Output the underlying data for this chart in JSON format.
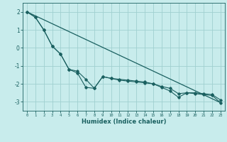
{
  "xlabel": "Humidex (Indice chaleur)",
  "bg_color": "#c8ecec",
  "grid_color": "#a0d0d0",
  "line_color": "#1a6060",
  "spine_color": "#1a6060",
  "xlim": [
    -0.5,
    23.5
  ],
  "ylim": [
    -3.5,
    2.5
  ],
  "yticks": [
    -3,
    -2,
    -1,
    0,
    1,
    2
  ],
  "xticks": [
    0,
    1,
    2,
    3,
    4,
    5,
    6,
    7,
    8,
    9,
    10,
    11,
    12,
    13,
    14,
    15,
    16,
    17,
    18,
    19,
    20,
    21,
    22,
    23
  ],
  "series1_x": [
    0,
    1,
    2,
    3,
    4,
    5,
    6,
    7,
    8,
    9,
    10,
    11,
    12,
    13,
    14,
    15,
    16,
    17,
    18,
    19,
    20,
    21,
    22,
    23
  ],
  "series1_y": [
    2.0,
    1.7,
    1.0,
    0.1,
    -0.35,
    -1.2,
    -1.3,
    -1.75,
    -2.25,
    -1.6,
    -1.7,
    -1.8,
    -1.85,
    -1.9,
    -1.95,
    -2.0,
    -2.15,
    -2.25,
    -2.55,
    -2.5,
    -2.5,
    -2.55,
    -2.6,
    -2.9
  ],
  "series2_x": [
    0,
    1,
    2,
    3,
    4,
    5,
    6,
    7,
    8,
    9,
    10,
    11,
    12,
    13,
    14,
    15,
    16,
    17,
    18,
    19,
    20,
    21,
    22,
    23
  ],
  "series2_y": [
    2.0,
    1.7,
    1.0,
    0.1,
    -0.35,
    -1.2,
    -1.4,
    -2.2,
    -2.25,
    -1.6,
    -1.7,
    -1.75,
    -1.8,
    -1.85,
    -1.9,
    -2.0,
    -2.2,
    -2.4,
    -2.75,
    -2.5,
    -2.55,
    -2.6,
    -2.65,
    -3.05
  ],
  "series3_x": [
    0,
    23
  ],
  "series3_y": [
    2.0,
    -3.05
  ]
}
